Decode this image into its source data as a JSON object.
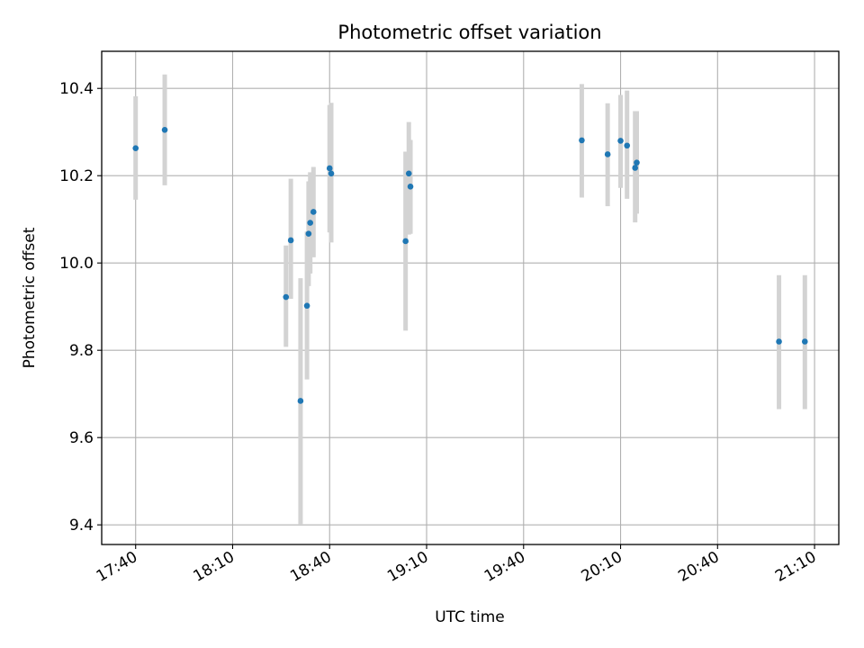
{
  "chart_data": {
    "type": "scatter",
    "title": "Photometric offset variation",
    "xlabel": "UTC time",
    "ylabel": "Photometric offset",
    "grid": true,
    "x_unit": "HH:MM",
    "xlim": [
      "17:29.5",
      "21:17.5"
    ],
    "ylim": [
      9.355,
      10.485
    ],
    "xticks": [
      "17:40",
      "18:10",
      "18:40",
      "19:10",
      "19:40",
      "20:10",
      "20:40",
      "21:10"
    ],
    "yticks": [
      "9.4",
      "9.6",
      "9.8",
      "10.0",
      "10.2",
      "10.4"
    ],
    "series": [
      {
        "marker_color": "#1f77b4",
        "errorbar_color": "#d3d3d3",
        "x": [
          "17:40",
          "17:49",
          "18:26.5",
          "18:28",
          "18:31",
          "18:33",
          "18:33.5",
          "18:34",
          "18:35",
          "18:40",
          "18:40.5",
          "19:03.5",
          "19:04.5",
          "19:05",
          "19:58",
          "20:06",
          "20:10",
          "20:12",
          "20:14.5",
          "20:15"
        ],
        "y": [
          10.263,
          10.305,
          9.922,
          10.052,
          9.684,
          9.902,
          10.067,
          10.092,
          10.117,
          10.217,
          10.205,
          10.05,
          10.205,
          10.175,
          10.281,
          10.249,
          10.28,
          10.269,
          10.218,
          10.23
        ],
        "yerr_low": [
          10.145,
          10.178,
          9.808,
          9.918,
          9.402,
          9.733,
          9.947,
          9.976,
          10.013,
          10.07,
          10.047,
          9.845,
          10.065,
          10.067,
          10.15,
          10.13,
          10.172,
          10.147,
          10.093,
          10.113
        ],
        "yerr_high": [
          10.382,
          10.432,
          10.04,
          10.193,
          9.965,
          10.072,
          10.187,
          10.208,
          10.22,
          10.362,
          10.367,
          10.255,
          10.323,
          10.282,
          10.41,
          10.366,
          10.385,
          10.395,
          10.348,
          10.348
        ]
      },
      {
        "marker_color": "#1f77b4",
        "errorbar_color": "#d3d3d3",
        "x": [
          "20:59",
          "21:07"
        ],
        "y": [
          9.82,
          9.82
        ],
        "yerr_low": [
          9.665,
          9.665
        ],
        "yerr_high": [
          9.972,
          9.972
        ]
      }
    ]
  }
}
